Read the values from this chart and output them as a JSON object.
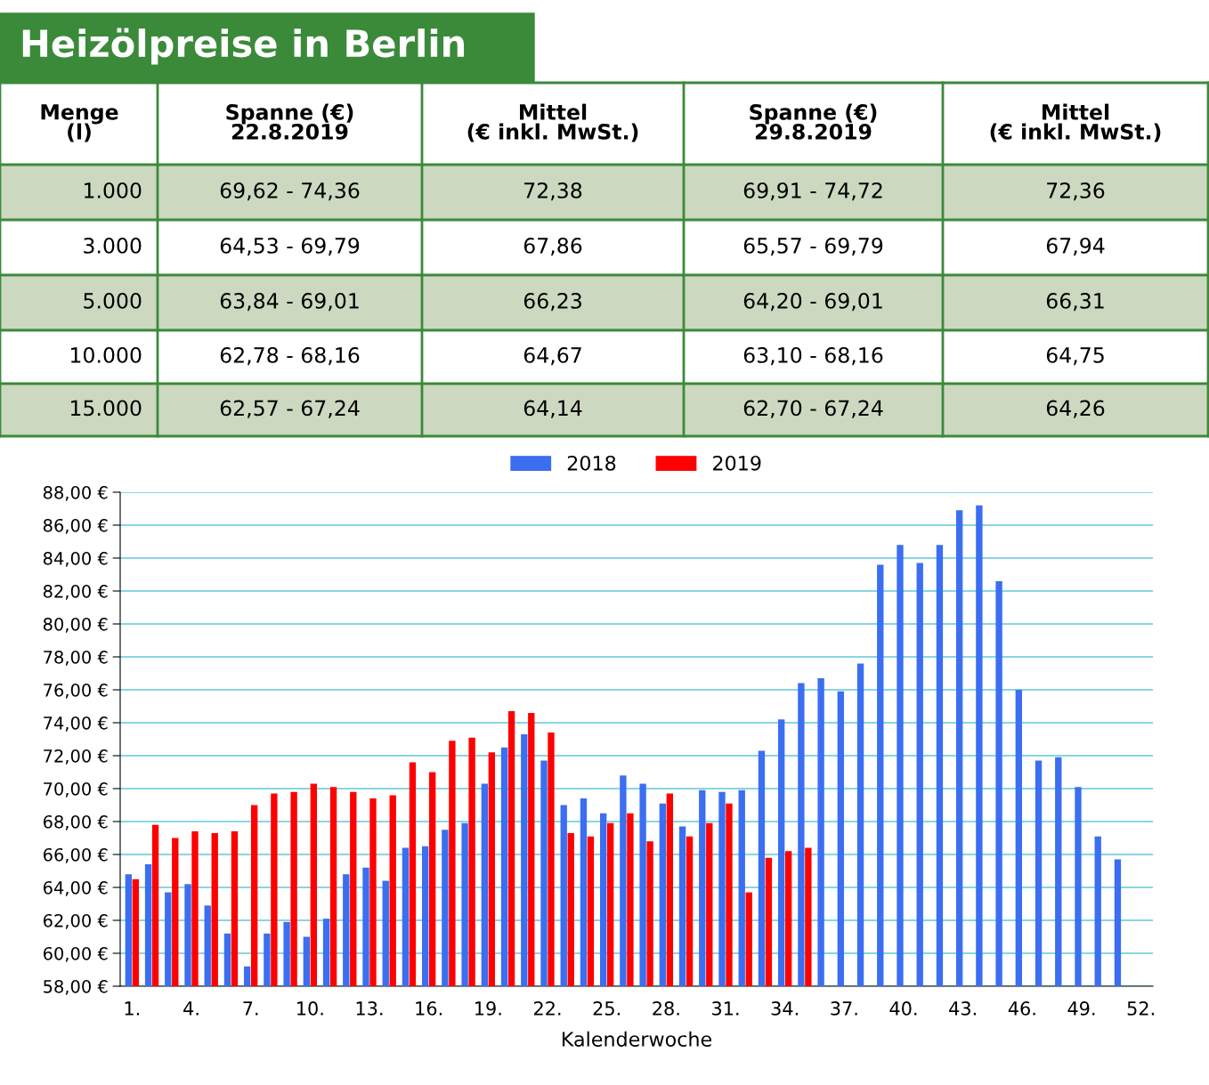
{
  "chart_data": [
    {
      "type": "other",
      "title": "Heizölpreise in Berlin",
      "ylabel": "Menge\n(l)",
      "categories": [
        "Spanne (€)\n22.8.2019",
        "Mittel\n(€ inkl. MwSt.)",
        "Spanne (€)\n29.8.2019",
        "Mittel\n(€ inkl. MwSt.)"
      ],
      "y_categories": [
        "1.000",
        "3.000",
        "5.000",
        "10.000",
        "15.000"
      ],
      "cell_labels": [
        [
          "69,62 - 74,36",
          "72,38",
          "69,91 - 74,72",
          "72,36"
        ],
        [
          "64,53 - 69,79",
          "67,86",
          "65,57 - 69,79",
          "67,94"
        ],
        [
          "63,84 - 69,01",
          "66,23",
          "64,20 - 69,01",
          "66,31"
        ],
        [
          "62,78 - 68,16",
          "64,67",
          "63,10 - 68,16",
          "64,75"
        ],
        [
          "62,57 - 67,24",
          "64,14",
          "62,70 - 67,24",
          "64,26"
        ]
      ]
    },
    {
      "type": "bar",
      "xlabel": "Kalenderwoche",
      "categories": [
        "1.",
        null,
        null,
        "4.",
        null,
        null,
        "7.",
        null,
        null,
        "10.",
        null,
        null,
        "13.",
        null,
        null,
        "16.",
        null,
        null,
        "19.",
        null,
        null,
        "22.",
        null,
        null,
        "25.",
        null,
        null,
        "28.",
        null,
        null,
        "31.",
        null,
        null,
        "34.",
        null,
        null,
        "37.",
        null,
        null,
        "40.",
        null,
        null,
        "43.",
        null,
        null,
        "46.",
        null,
        null,
        "49.",
        null,
        null,
        "52."
      ],
      "series": [
        {
          "name": "2018",
          "color": "#3b6ef0",
          "values": [
            64.8,
            65.4,
            63.7,
            64.2,
            62.9,
            61.2,
            59.2,
            61.2,
            61.9,
            61.0,
            62.1,
            64.8,
            65.2,
            64.4,
            66.4,
            66.5,
            67.5,
            67.9,
            70.3,
            72.5,
            73.3,
            71.7,
            69.0,
            69.4,
            68.5,
            70.8,
            70.3,
            69.1,
            67.7,
            69.9,
            69.8,
            69.9,
            72.3,
            74.2,
            76.4,
            76.7,
            75.9,
            77.6,
            83.6,
            84.8,
            83.7,
            84.8,
            86.9,
            87.2,
            82.6,
            76.0,
            71.7,
            71.9,
            70.1,
            67.1,
            65.7,
            null
          ]
        },
        {
          "name": "2019",
          "color": "#ff0000",
          "values": [
            64.5,
            67.8,
            67.0,
            67.4,
            67.3,
            67.4,
            69.0,
            69.7,
            69.8,
            70.3,
            70.1,
            69.8,
            69.4,
            69.6,
            71.6,
            71.0,
            72.9,
            73.1,
            72.2,
            74.7,
            74.6,
            73.4,
            67.3,
            67.1,
            67.9,
            68.5,
            66.8,
            69.7,
            67.1,
            67.9,
            69.1,
            63.7,
            65.8,
            66.2,
            66.4,
            null,
            null,
            null,
            null,
            null,
            null,
            null,
            null,
            null,
            null,
            null,
            null,
            null,
            null,
            null,
            null,
            null
          ]
        }
      ],
      "ylim": [
        58,
        88
      ],
      "yticks": [
        {
          "value": 58,
          "label": "58,00 €"
        },
        {
          "value": 60,
          "label": "60,00 €"
        },
        {
          "value": 62,
          "label": "62,00 €"
        },
        {
          "value": 64,
          "label": "64,00 €"
        },
        {
          "value": 66,
          "label": "66,00 €"
        },
        {
          "value": 68,
          "label": "68,00 €"
        },
        {
          "value": 70,
          "label": "70,00 €"
        },
        {
          "value": 72,
          "label": "72,00 €"
        },
        {
          "value": 74,
          "label": "74,00 €"
        },
        {
          "value": 76,
          "label": "76,00 €"
        },
        {
          "value": 78,
          "label": "78,00 €"
        },
        {
          "value": 80,
          "label": "80,00 €"
        },
        {
          "value": 82,
          "label": "82,00 €"
        },
        {
          "value": 84,
          "label": "84,00 €"
        },
        {
          "value": 86,
          "label": "86,00 €"
        },
        {
          "value": 88,
          "label": "88,00 €"
        }
      ],
      "grid": "y",
      "legend": "top"
    }
  ]
}
